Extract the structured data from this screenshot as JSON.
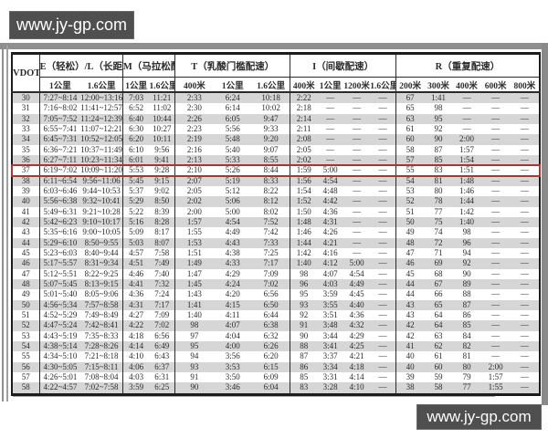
{
  "watermark": {
    "text": "www.jy-gp.com"
  },
  "table": {
    "corner_label": "VDOT",
    "groups": [
      {
        "label": "E（轻松）/L（长距离）",
        "subs": [
          "1公里",
          "1.6公里"
        ]
      },
      {
        "label": "M（马拉松配速）",
        "subs": [
          "1公里",
          "1.6公里"
        ]
      },
      {
        "label": "T（乳酸门槛配速）",
        "subs": [
          "400米",
          "1公里",
          "1.6公里"
        ]
      },
      {
        "label": "I（间歇配速）",
        "subs": [
          "400米",
          "1公里",
          "1200米",
          "1.6公里"
        ]
      },
      {
        "label": "R（重复配速）",
        "subs": [
          "200米",
          "300米",
          "400米",
          "600米",
          "800米"
        ]
      }
    ],
    "highlighted_vdot": "37",
    "rows": [
      [
        "30",
        "7:27~8:14",
        "12:00~13:16",
        "7:03",
        "11:21",
        "2:33",
        "6:24",
        "10:18",
        "2:22",
        "—",
        "—",
        "—",
        "67",
        "1:41",
        "—",
        "—",
        "—"
      ],
      [
        "31",
        "7:16~8:02",
        "11:41~12:57",
        "6:52",
        "11:02",
        "2:30",
        "6:14",
        "10:02",
        "2:18",
        "—",
        "—",
        "—",
        "65",
        "98",
        "—",
        "—",
        "—"
      ],
      [
        "32",
        "7:05~7:52",
        "11:24~12:39",
        "6:40",
        "10:44",
        "2:26",
        "6:05",
        "9:47",
        "2:14",
        "—",
        "—",
        "—",
        "63",
        "95",
        "—",
        "—",
        "—"
      ],
      [
        "33",
        "6:55~7:41",
        "11:07~12:21",
        "6:30",
        "10:27",
        "2:23",
        "5:56",
        "9:33",
        "2:11",
        "—",
        "—",
        "—",
        "61",
        "92",
        "—",
        "—",
        "—"
      ],
      [
        "34",
        "6:45~7:31",
        "10:52~12:05",
        "6:20",
        "10:11",
        "2:19",
        "5:48",
        "9:20",
        "2:08",
        "—",
        "—",
        "—",
        "60",
        "90",
        "2:00",
        "—",
        "—"
      ],
      [
        "35",
        "6:36~7:21",
        "10:37~11:49",
        "6:10",
        "9:56",
        "2:16",
        "5:40",
        "9:07",
        "2:05",
        "—",
        "—",
        "—",
        "58",
        "87",
        "1:57",
        "—",
        "—"
      ],
      [
        "36",
        "6:27~7:11",
        "10:23~11:34",
        "6:01",
        "9:41",
        "2:13",
        "5:33",
        "8:55",
        "2:02",
        "—",
        "—",
        "—",
        "57",
        "85",
        "1:54",
        "—",
        "—"
      ],
      [
        "37",
        "6:19~7:02",
        "10:09~11:20",
        "5:53",
        "9:28",
        "2:10",
        "5:26",
        "8:44",
        "1:59",
        "5:00",
        "—",
        "—",
        "55",
        "83",
        "1:51",
        "—",
        "—"
      ],
      [
        "38",
        "6:11~6:54",
        "9:56~11:06",
        "5:45",
        "9:15",
        "2:07",
        "5:19",
        "8:33",
        "1:56",
        "4:54",
        "—",
        "—",
        "54",
        "81",
        "1:48",
        "—",
        "—"
      ],
      [
        "39",
        "6:03~6:46",
        "9:44~10:53",
        "5:37",
        "9:02",
        "2:05",
        "5:12",
        "8:22",
        "1:54",
        "4:48",
        "—",
        "—",
        "53",
        "80",
        "1:46",
        "—",
        "—"
      ],
      [
        "40",
        "5:56~6:38",
        "9:32~10:41",
        "5:29",
        "8:50",
        "2:02",
        "5:06",
        "8:12",
        "1:52",
        "4:42",
        "—",
        "—",
        "52",
        "78",
        "1:44",
        "—",
        "—"
      ],
      [
        "41",
        "5:49~6:31",
        "9:21~10:28",
        "5:22",
        "8:39",
        "2:00",
        "5:00",
        "8:02",
        "1:50",
        "4:36",
        "—",
        "—",
        "51",
        "77",
        "1:42",
        "—",
        "—"
      ],
      [
        "42",
        "5:42~6:23",
        "9:10~10:17",
        "5:16",
        "8:28",
        "1:57",
        "4:54",
        "7:52",
        "1:48",
        "4:31",
        "—",
        "—",
        "50",
        "75",
        "1:40",
        "—",
        "—"
      ],
      [
        "43",
        "5:35~6:16",
        "9:00~10:05",
        "5:09",
        "8:17",
        "1:55",
        "4:49",
        "7:42",
        "1:46",
        "4:26",
        "—",
        "—",
        "49",
        "74",
        "98",
        "—",
        "—"
      ],
      [
        "44",
        "5:29~6:10",
        "8:50~9:55",
        "5:03",
        "8:07",
        "1:53",
        "4:43",
        "7:33",
        "1:44",
        "4:21",
        "—",
        "—",
        "48",
        "72",
        "96",
        "—",
        "—"
      ],
      [
        "45",
        "5:23~6:03",
        "8:40~9:44",
        "4:57",
        "7:58",
        "1:51",
        "4:38",
        "7:25",
        "1:42",
        "4:16",
        "—",
        "—",
        "47",
        "71",
        "94",
        "—",
        "—"
      ],
      [
        "46",
        "5:17~5:57",
        "8:31~9:34",
        "4:51",
        "7:49",
        "1:49",
        "4:33",
        "7:17",
        "1:40",
        "4:12",
        "5:00",
        "—",
        "46",
        "69",
        "92",
        "—",
        "—"
      ],
      [
        "47",
        "5:12~5:51",
        "8:22~9:25",
        "4:46",
        "7:40",
        "1:47",
        "4:29",
        "7:09",
        "98",
        "4:07",
        "4:54",
        "—",
        "45",
        "68",
        "90",
        "—",
        "—"
      ],
      [
        "48",
        "5:07~5:45",
        "8:13~9:15",
        "4:41",
        "7:32",
        "1:45",
        "4:24",
        "7:02",
        "96",
        "4:03",
        "4:49",
        "—",
        "44",
        "67",
        "89",
        "—",
        "—"
      ],
      [
        "49",
        "5:01~5:40",
        "8:05~9:06",
        "4:36",
        "7:24",
        "1:43",
        "4:20",
        "6:56",
        "95",
        "3:59",
        "4:45",
        "—",
        "44",
        "66",
        "88",
        "—",
        "—"
      ],
      [
        "50",
        "4:56~5:34",
        "7:57~8:58",
        "4:31",
        "7:17",
        "1:41",
        "4:15",
        "6:50",
        "93",
        "3:55",
        "4:40",
        "—",
        "43",
        "65",
        "87",
        "—",
        "—"
      ],
      [
        "51",
        "4:52~5:29",
        "7:49~8:49",
        "4:27",
        "7:09",
        "1:40",
        "4:11",
        "6:44",
        "92",
        "3:51",
        "4:36",
        "—",
        "43",
        "64",
        "86",
        "—",
        "—"
      ],
      [
        "52",
        "4:47~5:24",
        "7:42~8:41",
        "4:22",
        "7:02",
        "98",
        "4:07",
        "6:38",
        "91",
        "3:48",
        "4:32",
        "—",
        "42",
        "64",
        "85",
        "—",
        "—"
      ],
      [
        "53",
        "4:43~5:19",
        "7:35~8:33",
        "4:18",
        "6:56",
        "97",
        "4:04",
        "6:32",
        "90",
        "3:44",
        "4:29",
        "—",
        "42",
        "63",
        "84",
        "—",
        "—"
      ],
      [
        "54",
        "4:38~5:14",
        "7:28~8:26",
        "4:14",
        "6:49",
        "95",
        "4:00",
        "6:26",
        "88",
        "3:41",
        "4:25",
        "—",
        "41",
        "62",
        "82",
        "—",
        "—"
      ],
      [
        "55",
        "4:34~5:10",
        "7:21~8:18",
        "4:10",
        "6:43",
        "94",
        "3:56",
        "6:20",
        "87",
        "3:37",
        "4:21",
        "—",
        "40",
        "61",
        "81",
        "—",
        "—"
      ],
      [
        "56",
        "4:30~5:05",
        "7:15~8:11",
        "4:06",
        "6:37",
        "93",
        "3:53",
        "6:15",
        "86",
        "3:34",
        "4:18",
        "—",
        "40",
        "60",
        "80",
        "2:00",
        "—"
      ],
      [
        "57",
        "4:26~5:01",
        "7:08~8:04",
        "4:03",
        "6:31",
        "91",
        "3:50",
        "6:09",
        "85",
        "3:31",
        "4:14",
        "—",
        "39",
        "59",
        "79",
        "1:57",
        "—"
      ],
      [
        "58",
        "4:22~4:57",
        "7:02~7:58",
        "3:59",
        "6:25",
        "90",
        "3:46",
        "6:04",
        "83",
        "3:28",
        "4:10",
        "—",
        "38",
        "58",
        "77",
        "1:55",
        "—"
      ]
    ]
  }
}
